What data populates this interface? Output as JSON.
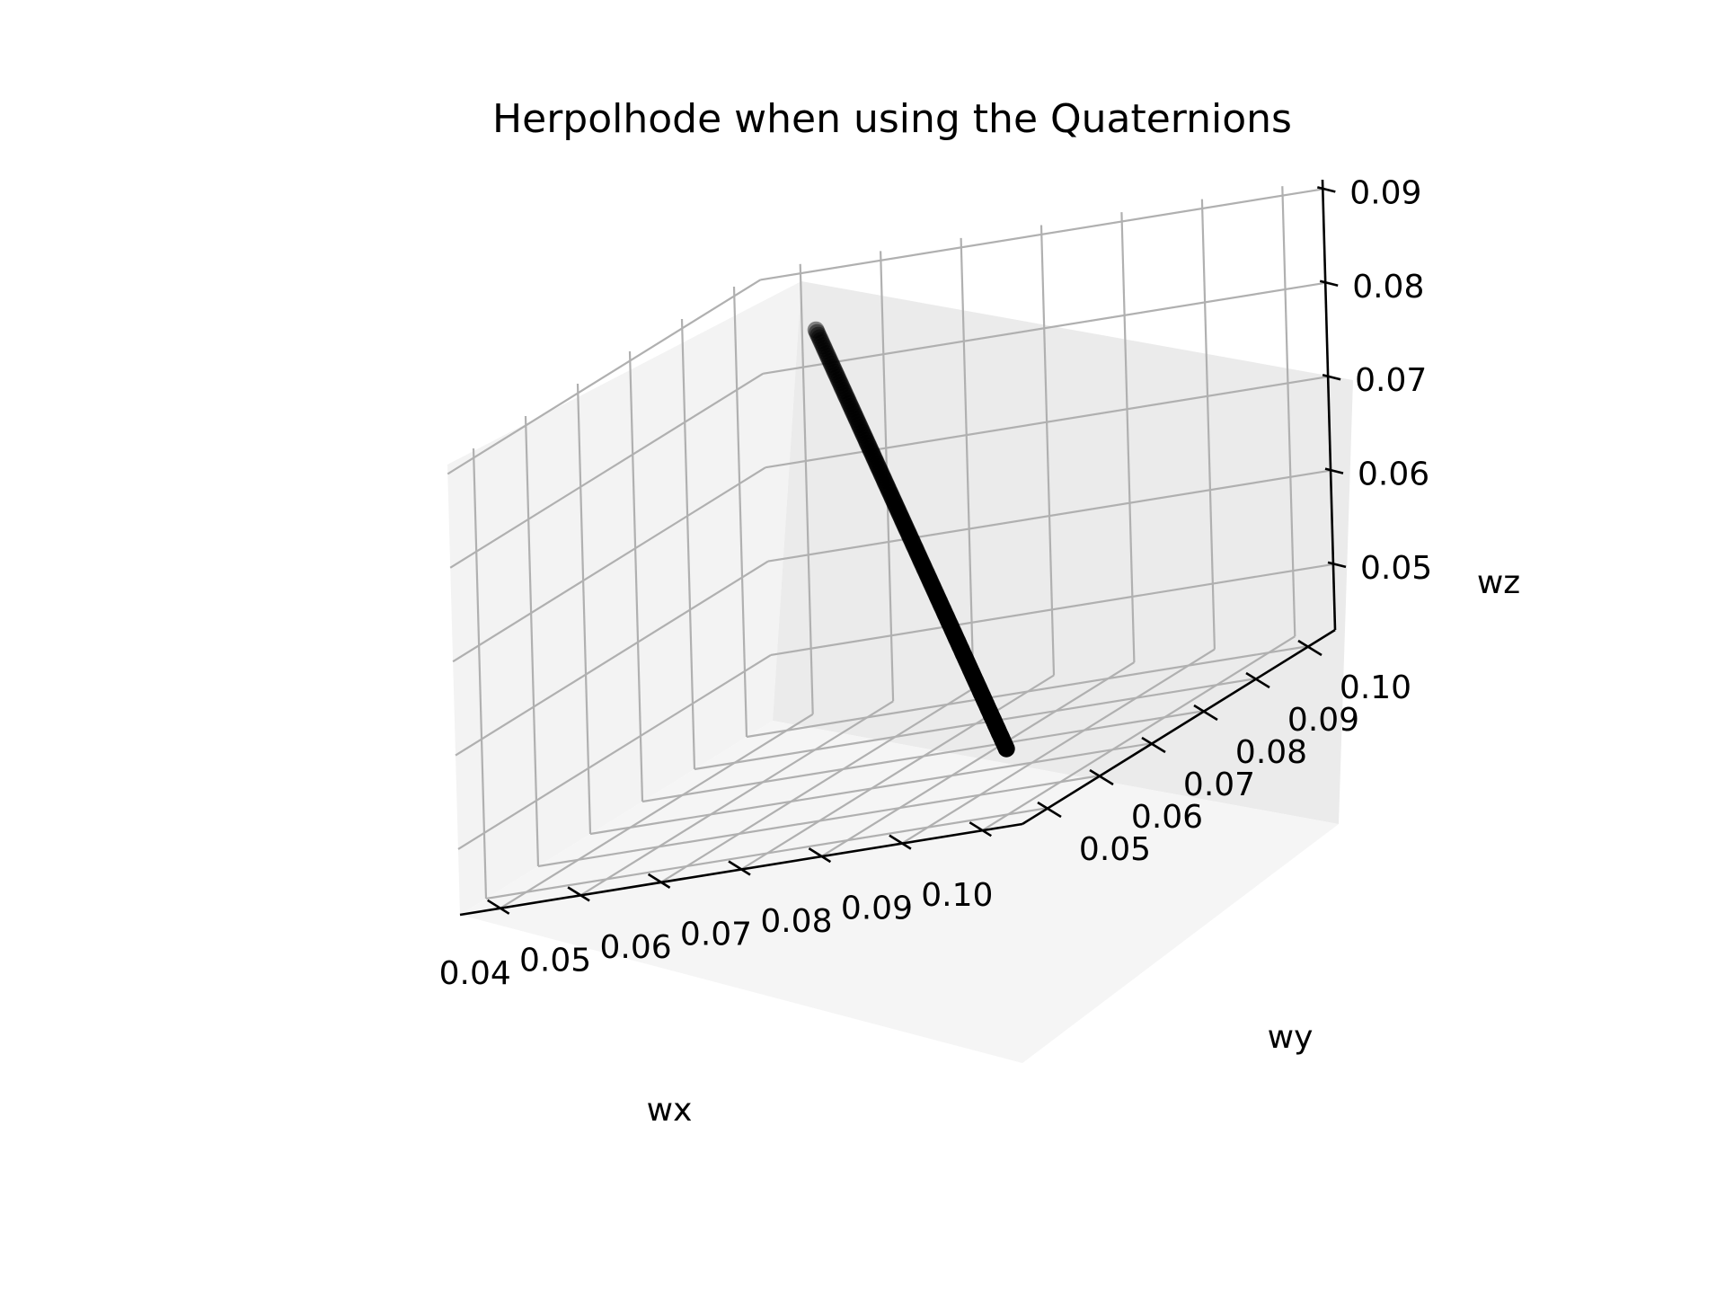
{
  "chart_data": {
    "type": "scatter",
    "projection": "3d",
    "title": "Herpolhode when using the Quaternions",
    "xlabel": "wx",
    "ylabel": "wy",
    "zlabel": "wz",
    "grid": true,
    "legend": "none",
    "marker_color": "#000000",
    "pane_colors": {
      "left": "#f3f3f3",
      "back": "#ebebeb",
      "floor": "#f5f5f5",
      "grid": "#b0b0b0"
    },
    "xlim": [
      0.035,
      0.105
    ],
    "ylim": [
      0.045,
      0.105
    ],
    "zlim": [
      0.043,
      0.091
    ],
    "x_ticks": [
      "0.04",
      "0.05",
      "0.06",
      "0.07",
      "0.08",
      "0.09",
      "0.10"
    ],
    "y_ticks": [
      "0.05",
      "0.06",
      "0.07",
      "0.08",
      "0.09",
      "0.10"
    ],
    "z_ticks": [
      "0.05",
      "0.06",
      "0.07",
      "0.08",
      "0.09"
    ],
    "series": [
      {
        "start": {
          "x": 0.045,
          "y": 0.1,
          "z": 0.085
        },
        "end": {
          "x": 0.1,
          "y": 0.05,
          "z": 0.05
        },
        "points": 160
      }
    ]
  }
}
